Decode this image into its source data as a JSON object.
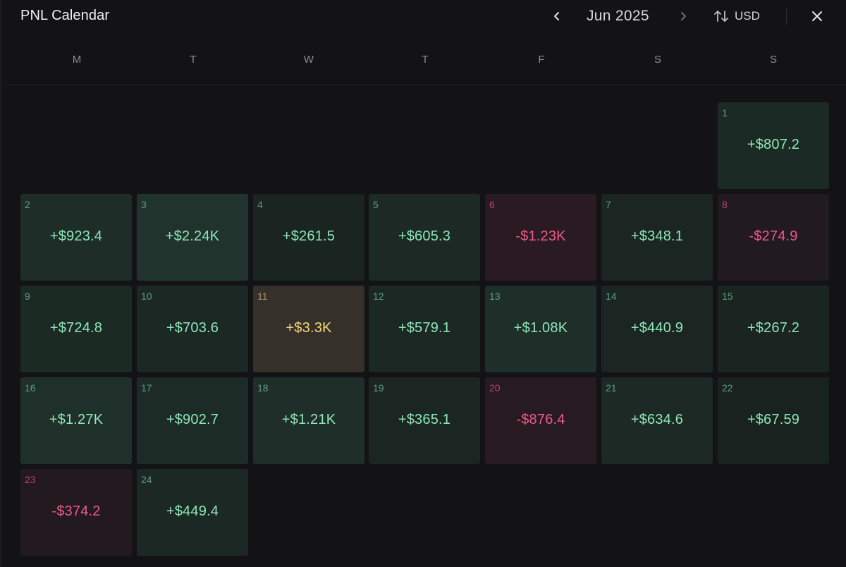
{
  "header": {
    "title": "PNL Calendar",
    "month": "Jun 2025",
    "currency": "USD"
  },
  "icons": {
    "prev": "chevron-left-icon",
    "next": "chevron-right-icon",
    "currency_toggle": "swap-vertical-icon",
    "close": "close-icon"
  },
  "weekdays": [
    "M",
    "T",
    "W",
    "T",
    "F",
    "S",
    "S"
  ],
  "colors": {
    "positive_text": "#8ee6b8",
    "negative_text": "#ee5a8a",
    "highlight_text": "#f5d77a",
    "background": "#131316"
  },
  "days": [
    {
      "day": "1",
      "value": "+$807.2",
      "tone": "pos",
      "bg": "#1c2a25"
    },
    {
      "day": "2",
      "value": "+$923.4",
      "tone": "pos",
      "bg": "#1e2d28"
    },
    {
      "day": "3",
      "value": "+$2.24K",
      "tone": "pos",
      "bg": "#21332d"
    },
    {
      "day": "4",
      "value": "+$261.5",
      "tone": "pos",
      "bg": "#1a2420"
    },
    {
      "day": "5",
      "value": "+$605.3",
      "tone": "pos",
      "bg": "#1c2925"
    },
    {
      "day": "6",
      "value": "-$1.23K",
      "tone": "neg",
      "bg": "#2a1b22"
    },
    {
      "day": "7",
      "value": "+$348.1",
      "tone": "pos",
      "bg": "#1b2521"
    },
    {
      "day": "8",
      "value": "-$274.9",
      "tone": "neg",
      "bg": "#211a1f"
    },
    {
      "day": "9",
      "value": "+$724.8",
      "tone": "pos",
      "bg": "#1c2a24"
    },
    {
      "day": "10",
      "value": "+$703.6",
      "tone": "pos",
      "bg": "#1c2823"
    },
    {
      "day": "11",
      "value": "+$3.3K",
      "tone": "gold",
      "bg": "#35302a"
    },
    {
      "day": "12",
      "value": "+$579.1",
      "tone": "pos",
      "bg": "#1c2824"
    },
    {
      "day": "13",
      "value": "+$1.08K",
      "tone": "pos",
      "bg": "#1e2e28"
    },
    {
      "day": "14",
      "value": "+$440.9",
      "tone": "pos",
      "bg": "#1b2622"
    },
    {
      "day": "15",
      "value": "+$267.2",
      "tone": "pos",
      "bg": "#1a2420"
    },
    {
      "day": "16",
      "value": "+$1.27K",
      "tone": "pos",
      "bg": "#1f2f29"
    },
    {
      "day": "17",
      "value": "+$902.7",
      "tone": "pos",
      "bg": "#1d2b26"
    },
    {
      "day": "18",
      "value": "+$1.21K",
      "tone": "pos",
      "bg": "#1f2e29"
    },
    {
      "day": "19",
      "value": "+$365.1",
      "tone": "pos",
      "bg": "#1b2521"
    },
    {
      "day": "20",
      "value": "-$876.4",
      "tone": "neg",
      "bg": "#271b21"
    },
    {
      "day": "21",
      "value": "+$634.6",
      "tone": "pos",
      "bg": "#1c2924"
    },
    {
      "day": "22",
      "value": "+$67.59",
      "tone": "pos",
      "bg": "#19221e"
    },
    {
      "day": "23",
      "value": "-$374.2",
      "tone": "neg",
      "bg": "#231a1f"
    },
    {
      "day": "24",
      "value": "+$449.4",
      "tone": "pos",
      "bg": "#1c2824"
    }
  ]
}
